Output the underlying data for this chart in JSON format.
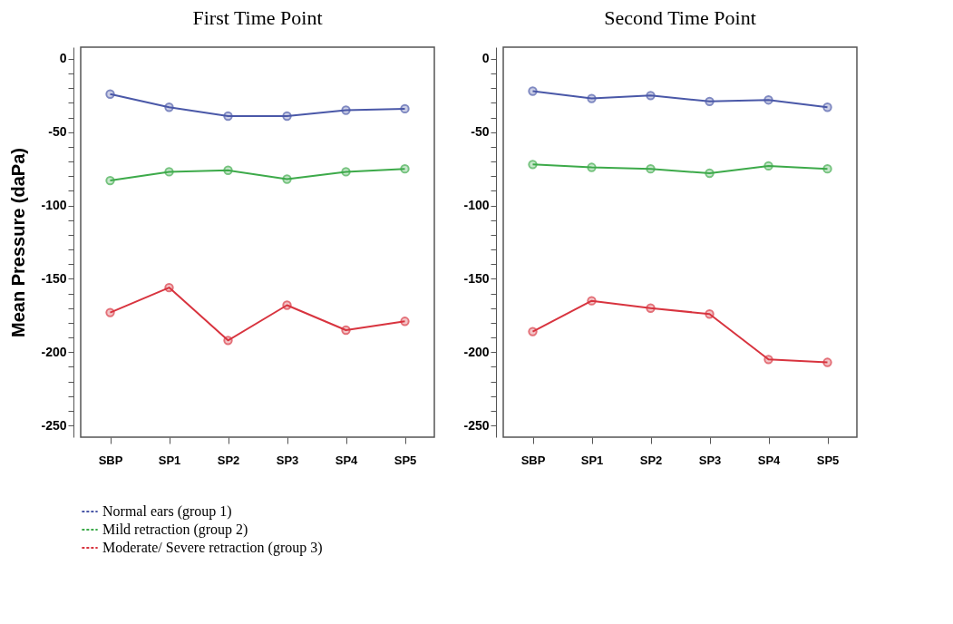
{
  "chart_data": [
    {
      "type": "line",
      "title": "First Time Point",
      "ylabel": "Mean Pressure (daPa)",
      "categories": [
        "SBP",
        "SP1",
        "SP2",
        "SP3",
        "SP4",
        "SP5"
      ],
      "series": [
        {
          "name": "Normal ears (group 1)",
          "color": "#4a58a8",
          "values": [
            -24,
            -33,
            -39,
            -39,
            -35,
            -34
          ]
        },
        {
          "name": "Mild retraction (group 2)",
          "color": "#3daa4a",
          "values": [
            -83,
            -77,
            -76,
            -82,
            -77,
            -75
          ]
        },
        {
          "name": "Moderate/ Severe retraction (group 3)",
          "color": "#d8343f",
          "values": [
            -173,
            -156,
            -192,
            -168,
            -185,
            -179
          ]
        }
      ],
      "ylim": [
        -258,
        8
      ],
      "yticks": [
        0,
        {
          "value": -10,
          "label": null
        },
        {
          "value": -20,
          "label": null
        },
        {
          "value": -30,
          "label": null
        },
        {
          "value": -40,
          "label": null
        },
        -50,
        {
          "value": -60,
          "label": null
        },
        {
          "value": -70,
          "label": null
        },
        {
          "value": -80,
          "label": null
        },
        {
          "value": -90,
          "label": null
        },
        -100,
        {
          "value": -110,
          "label": null
        },
        {
          "value": -120,
          "label": null
        },
        {
          "value": -130,
          "label": null
        },
        {
          "value": -140,
          "label": null
        },
        -150,
        {
          "value": -160,
          "label": null
        },
        {
          "value": -170,
          "label": null
        },
        {
          "value": -180,
          "label": null
        },
        {
          "value": -190,
          "label": null
        },
        -200,
        {
          "value": -210,
          "label": null
        },
        {
          "value": -220,
          "label": null
        },
        {
          "value": -230,
          "label": null
        },
        {
          "value": -240,
          "label": null
        },
        -250
      ],
      "marker": "circle",
      "line_style": "solid",
      "legend": "bottom"
    },
    {
      "type": "line",
      "title": "Second Time Point",
      "categories": [
        "SBP",
        "SP1",
        "SP2",
        "SP3",
        "SP4",
        "SP5"
      ],
      "series": [
        {
          "color": "#4a58a8",
          "values": [
            -22,
            -27,
            -25,
            -29,
            -28,
            -33
          ]
        },
        {
          "color": "#3daa4a",
          "values": [
            -72,
            -74,
            -75,
            -78,
            -73,
            -75
          ]
        },
        {
          "color": "#d8343f",
          "values": [
            -186,
            -165,
            -170,
            -174,
            -205,
            -207
          ]
        }
      ],
      "ylim": [
        -258,
        8
      ],
      "yticks": [
        0,
        {
          "value": -10,
          "label": null
        },
        {
          "value": -20,
          "label": null
        },
        {
          "value": -30,
          "label": null
        },
        {
          "value": -40,
          "label": null
        },
        -50,
        {
          "value": -60,
          "label": null
        },
        {
          "value": -70,
          "label": null
        },
        {
          "value": -80,
          "label": null
        },
        {
          "value": -90,
          "label": null
        },
        -100,
        {
          "value": -110,
          "label": null
        },
        {
          "value": -120,
          "label": null
        },
        {
          "value": -130,
          "label": null
        },
        {
          "value": -140,
          "label": null
        },
        -150,
        {
          "value": -160,
          "label": null
        },
        {
          "value": -170,
          "label": null
        },
        {
          "value": -180,
          "label": null
        },
        {
          "value": -190,
          "label": null
        },
        -200,
        {
          "value": -210,
          "label": null
        },
        {
          "value": -220,
          "label": null
        },
        {
          "value": -230,
          "label": null
        },
        {
          "value": -240,
          "label": null
        },
        -250
      ],
      "marker": "circle",
      "line_style": "solid",
      "legend": false
    }
  ]
}
